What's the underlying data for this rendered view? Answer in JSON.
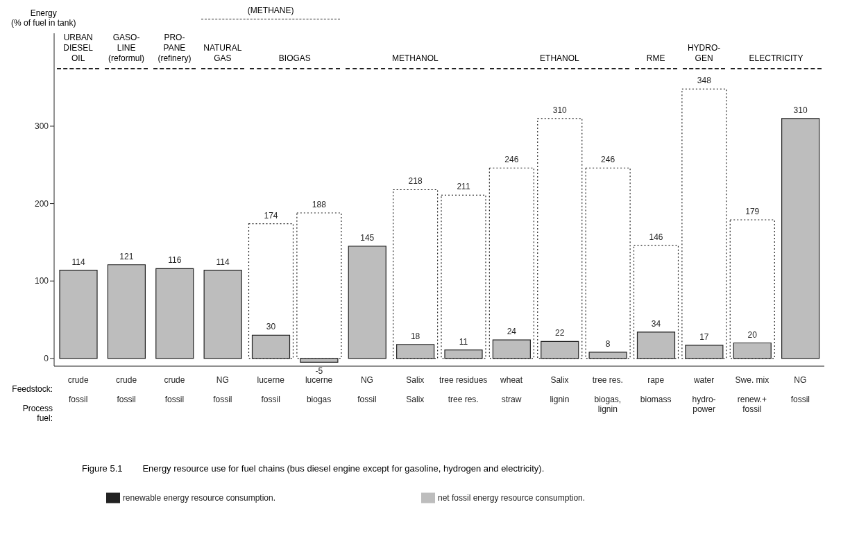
{
  "chart_data": {
    "type": "bar",
    "ylabel": "Energy\n(% of fuel in tank)",
    "categories": [
      "crude\nfossil",
      "crude\nfossil",
      "crude\nfossil",
      "NG\nfossil",
      "lucerne\nfossil",
      "lucerne\nbiogas",
      "NG\nfossil",
      "Salix\nSalix",
      "tree residues\ntree res.",
      "wheat\nstraw",
      "Salix\nlignin",
      "tree res.\nbiogas,\nlignin",
      "rape\nbiomass",
      "water\nhydro-\npower",
      "Swe. mix\nrenew.+\nfossil",
      "NG\nfossil"
    ],
    "series": [
      {
        "name": "net fossil energy resource consumption.",
        "color": "#bdbdbd",
        "values": [
          114,
          121,
          116,
          114,
          30,
          -5,
          145,
          18,
          11,
          24,
          22,
          8,
          34,
          17,
          20,
          310
        ]
      },
      {
        "name": "renewable energy resource consumption.",
        "color": "#222222",
        "line_style": "dotted",
        "values": [
          null,
          null,
          null,
          null,
          174,
          188,
          null,
          218,
          211,
          246,
          310,
          246,
          146,
          348,
          179,
          null
        ]
      }
    ],
    "ylim": [
      -10,
      420
    ],
    "yticks": [
      0,
      100,
      200,
      300
    ],
    "grid": false,
    "legend": "bottom",
    "data_labels": true,
    "annotations": [
      "URBAN\nDIESEL\nOIL",
      "GASO-\nLINE\n(reformul)",
      "PRO-\nPANE\n(refinery)",
      "NATURAL\nGAS",
      "BIOGAS",
      "METHANOL",
      "ETHANOL",
      "RME",
      "HYDRO-\nGEN",
      "ELECTRICITY",
      "(METHANE)",
      "Feedstock:",
      "Process fuel:",
      "Figure 5.1        Energy resource use for fuel chains (bus diesel engine except for gasoline, hydrogen and electricity)."
    ]
  }
}
